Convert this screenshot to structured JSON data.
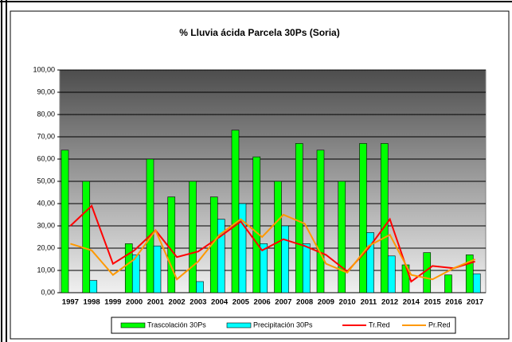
{
  "chart_data": {
    "type": "bar",
    "title": "% Lluvia ácida Parcela 30Ps (Soria)",
    "categories": [
      "1997",
      "1998",
      "1999",
      "2000",
      "2001",
      "2002",
      "2003",
      "2004",
      "2005",
      "2006",
      "2007",
      "2008",
      "2009",
      "2010",
      "2011",
      "2012",
      "2014",
      "2015",
      "2016",
      "2017"
    ],
    "series": [
      {
        "name": "Trascolación  30Ps",
        "type": "bar",
        "color": "#00ff00",
        "values": [
          64,
          50,
          0,
          22,
          60,
          43,
          50,
          43,
          73,
          61,
          50,
          67,
          64,
          50,
          67,
          67,
          12.5,
          18,
          8,
          17
        ]
      },
      {
        "name": "Precipitación 30Ps",
        "type": "bar",
        "color": "#00ffff",
        "values": [
          0,
          5.5,
          0,
          17,
          21,
          0,
          5,
          33,
          40,
          22,
          30,
          22,
          0,
          0,
          27,
          16.5,
          0,
          0,
          0,
          8.5
        ]
      },
      {
        "name": "Tr.Red",
        "type": "line",
        "color": "#ff0000",
        "values": [
          30,
          39,
          13,
          19,
          28,
          16,
          18.5,
          25,
          32,
          19,
          24,
          21,
          17,
          9.5,
          20,
          33,
          5,
          12,
          11,
          14
        ]
      },
      {
        "name": "Pr.Red",
        "type": "line",
        "color": "#ff9900",
        "values": [
          22,
          19,
          8,
          15,
          28,
          6,
          14,
          26,
          33,
          25,
          35,
          31,
          13,
          9,
          21,
          26,
          8,
          6,
          11,
          15
        ]
      }
    ],
    "ylim": [
      0,
      100
    ],
    "yticks": [
      {
        "value": 0,
        "label": "0,00"
      },
      {
        "value": 10,
        "label": "10,00"
      },
      {
        "value": 20,
        "label": "20,00"
      },
      {
        "value": 30,
        "label": "30,00"
      },
      {
        "value": 40,
        "label": "40,00"
      },
      {
        "value": 50,
        "label": "50,00"
      },
      {
        "value": 60,
        "label": "60,00"
      },
      {
        "value": 70,
        "label": "70,00"
      },
      {
        "value": 80,
        "label": "80,00"
      },
      {
        "value": 90,
        "label": "90,00"
      },
      {
        "value": 100,
        "label": "100,00"
      }
    ],
    "grid": true,
    "legend": "bottom"
  }
}
